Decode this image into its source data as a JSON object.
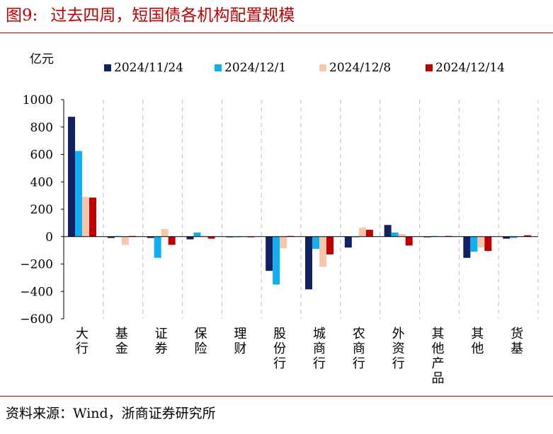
{
  "figure": {
    "number": "图9:",
    "title": "过去四周，短国债各机构配置规模"
  },
  "source": "资料来源：Wind，浙商证券研究所",
  "colors": {
    "title": "#c00000",
    "rule": "#c00000",
    "series": [
      "#0f2160",
      "#10b0f0",
      "#f6c6aa",
      "#c00000"
    ]
  },
  "chart_data": {
    "type": "bar",
    "ylabel": "亿元",
    "ylim": [
      -600,
      1000
    ],
    "yticks": [
      1000,
      800,
      600,
      400,
      200,
      0,
      -200,
      -400,
      -600
    ],
    "ytick_labels": [
      "1000",
      "800",
      "600",
      "400",
      "200",
      "0",
      "−200",
      "−400",
      "−600"
    ],
    "grid": "vertical dashed separators between categories",
    "legend_position": "top",
    "categories": [
      "大行",
      "基金",
      "证券",
      "保险",
      "理财",
      "股份行",
      "城商行",
      "农商行",
      "外资行",
      "其他产品",
      "其他",
      "货基"
    ],
    "series": [
      {
        "name": "2024/11/24",
        "values": [
          875,
          -10,
          -10,
          -20,
          -3,
          -250,
          -385,
          -80,
          85,
          -5,
          -155,
          -15
        ]
      },
      {
        "name": "2024/12/1",
        "values": [
          625,
          5,
          -155,
          30,
          -3,
          -350,
          -90,
          -3,
          30,
          5,
          -110,
          -10
        ]
      },
      {
        "name": "2024/12/8",
        "values": [
          290,
          -60,
          55,
          5,
          -3,
          -85,
          -220,
          65,
          20,
          3,
          -80,
          3
        ]
      },
      {
        "name": "2024/12/14",
        "values": [
          285,
          5,
          -60,
          -15,
          -3,
          5,
          -130,
          50,
          -65,
          5,
          -105,
          10
        ]
      }
    ]
  }
}
